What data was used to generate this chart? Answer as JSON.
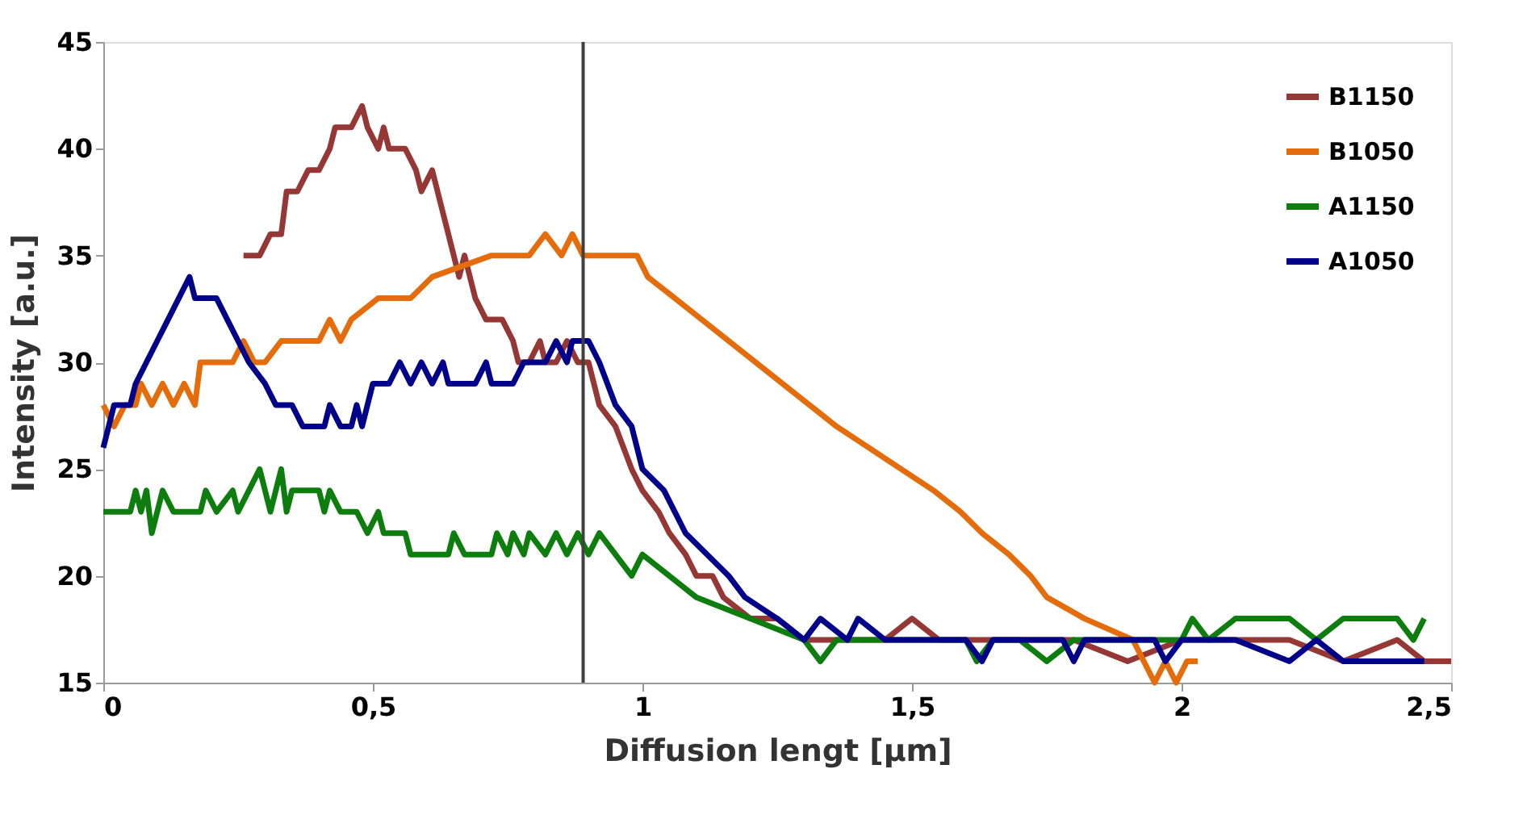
{
  "chart_data": {
    "type": "line",
    "xlabel": "Diffusion lengt [µm]",
    "ylabel": "Intensity [a.u.]",
    "xlim": [
      0,
      2.5
    ],
    "xticks": [
      0,
      {
        "value": 0.5,
        "label": "0,5"
      },
      1,
      {
        "value": 1.5,
        "label": "1,5"
      },
      2,
      {
        "value": 2.5,
        "label": "2,5"
      }
    ],
    "ylim": [
      15,
      45
    ],
    "yticks": [
      15,
      20,
      25,
      30,
      35,
      40,
      45
    ],
    "grid": false,
    "legend": "top right",
    "marker": "none",
    "line_style": "solid",
    "ref_lines": [
      {
        "axis": "x",
        "value": 0.89,
        "color": "#404040"
      }
    ],
    "series": [
      {
        "name": "B1150",
        "color": "#953735",
        "x": [
          0.26,
          0.29,
          0.31,
          0.33,
          0.34,
          0.36,
          0.38,
          0.4,
          0.42,
          0.43,
          0.46,
          0.48,
          0.49,
          0.51,
          0.52,
          0.53,
          0.56,
          0.58,
          0.59,
          0.61,
          0.63,
          0.64,
          0.66,
          0.67,
          0.69,
          0.71,
          0.74,
          0.76,
          0.77,
          0.79,
          0.81,
          0.82,
          0.84,
          0.86,
          0.88,
          0.9,
          0.92,
          0.95,
          0.98,
          1.0,
          1.03,
          1.05,
          1.08,
          1.1,
          1.13,
          1.15,
          1.2,
          1.25,
          1.3,
          1.35,
          1.4,
          1.45,
          1.5,
          1.55,
          1.6,
          1.7,
          1.8,
          1.9,
          2.0,
          2.1,
          2.2,
          2.3,
          2.4,
          2.45,
          2.5
        ],
        "values": [
          35,
          35,
          36,
          36,
          38,
          38,
          39,
          39,
          40,
          41,
          41,
          42,
          41,
          40,
          41,
          40,
          40,
          39,
          38,
          39,
          37,
          36,
          34,
          35,
          33,
          32,
          32,
          31,
          30,
          30,
          31,
          30,
          30,
          31,
          30,
          30,
          28,
          27,
          25,
          24,
          23,
          22,
          21,
          20,
          20,
          19,
          18,
          18,
          17,
          17,
          17,
          17,
          18,
          17,
          17,
          17,
          17,
          16,
          17,
          17,
          17,
          16,
          17,
          16,
          16
        ]
      },
      {
        "name": "B1050",
        "color": "#e46c0a",
        "x": [
          0,
          0.02,
          0.04,
          0.06,
          0.07,
          0.09,
          0.11,
          0.13,
          0.15,
          0.17,
          0.18,
          0.24,
          0.26,
          0.28,
          0.3,
          0.33,
          0.37,
          0.4,
          0.42,
          0.44,
          0.46,
          0.51,
          0.57,
          0.61,
          0.72,
          0.79,
          0.82,
          0.85,
          0.87,
          0.89,
          0.99,
          1.01,
          1.06,
          1.11,
          1.16,
          1.21,
          1.26,
          1.31,
          1.36,
          1.42,
          1.48,
          1.54,
          1.59,
          1.63,
          1.68,
          1.72,
          1.75,
          1.82,
          1.91,
          1.95,
          1.97,
          1.99,
          2.01,
          2.03
        ],
        "values": [
          28,
          27,
          28,
          28,
          29,
          28,
          29,
          28,
          29,
          28,
          30,
          30,
          31,
          30,
          30,
          31,
          31,
          31,
          32,
          31,
          32,
          33,
          33,
          34,
          35,
          35,
          36,
          35,
          36,
          35,
          35,
          34,
          33,
          32,
          31,
          30,
          29,
          28,
          27,
          26,
          25,
          24,
          23,
          22,
          21,
          20,
          19,
          18,
          17,
          15,
          16,
          15,
          16,
          16
        ]
      },
      {
        "name": "A1150",
        "color": "#0d7d0d",
        "x": [
          0,
          0.05,
          0.06,
          0.07,
          0.08,
          0.09,
          0.11,
          0.13,
          0.18,
          0.19,
          0.21,
          0.24,
          0.25,
          0.27,
          0.29,
          0.31,
          0.33,
          0.34,
          0.35,
          0.4,
          0.41,
          0.42,
          0.44,
          0.47,
          0.49,
          0.51,
          0.52,
          0.56,
          0.57,
          0.6,
          0.64,
          0.65,
          0.67,
          0.72,
          0.73,
          0.75,
          0.76,
          0.78,
          0.79,
          0.82,
          0.84,
          0.86,
          0.88,
          0.9,
          0.92,
          0.95,
          0.98,
          1.0,
          1.05,
          1.1,
          1.2,
          1.3,
          1.33,
          1.36,
          1.45,
          1.6,
          1.62,
          1.65,
          1.7,
          1.75,
          1.8,
          2.0,
          2.02,
          2.05,
          2.1,
          2.2,
          2.25,
          2.3,
          2.4,
          2.43,
          2.45
        ],
        "values": [
          23,
          23,
          24,
          23,
          24,
          22,
          24,
          23,
          23,
          24,
          23,
          24,
          23,
          24,
          25,
          23,
          25,
          23,
          24,
          24,
          23,
          24,
          23,
          23,
          22,
          23,
          22,
          22,
          21,
          21,
          21,
          22,
          21,
          21,
          22,
          21,
          22,
          21,
          22,
          21,
          22,
          21,
          22,
          21,
          22,
          21,
          20,
          21,
          20,
          19,
          18,
          17,
          16,
          17,
          17,
          17,
          16,
          17,
          17,
          16,
          17,
          17,
          18,
          17,
          18,
          18,
          17,
          18,
          18,
          17,
          18
        ]
      },
      {
        "name": "A1050",
        "color": "#00008b",
        "x": [
          0,
          0.01,
          0.02,
          0.05,
          0.06,
          0.08,
          0.1,
          0.12,
          0.14,
          0.16,
          0.17,
          0.21,
          0.23,
          0.25,
          0.27,
          0.3,
          0.32,
          0.35,
          0.37,
          0.41,
          0.42,
          0.44,
          0.46,
          0.47,
          0.48,
          0.5,
          0.53,
          0.55,
          0.57,
          0.59,
          0.61,
          0.63,
          0.64,
          0.69,
          0.71,
          0.72,
          0.76,
          0.78,
          0.82,
          0.84,
          0.86,
          0.87,
          0.9,
          0.92,
          0.95,
          0.98,
          1.0,
          1.04,
          1.08,
          1.12,
          1.16,
          1.19,
          1.25,
          1.3,
          1.33,
          1.38,
          1.4,
          1.45,
          1.6,
          1.63,
          1.65,
          1.78,
          1.8,
          1.82,
          1.95,
          1.97,
          2.0,
          2.1,
          2.2,
          2.25,
          2.3,
          2.4,
          2.45
        ],
        "values": [
          26,
          27,
          28,
          28,
          29,
          30,
          31,
          32,
          33,
          34,
          33,
          33,
          32,
          31,
          30,
          29,
          28,
          28,
          27,
          27,
          28,
          27,
          27,
          28,
          27,
          29,
          29,
          30,
          29,
          30,
          29,
          30,
          29,
          29,
          30,
          29,
          29,
          30,
          30,
          31,
          30,
          31,
          31,
          30,
          28,
          27,
          25,
          24,
          22,
          21,
          20,
          19,
          18,
          17,
          18,
          17,
          18,
          17,
          17,
          16,
          17,
          17,
          16,
          17,
          17,
          16,
          17,
          17,
          16,
          17,
          16,
          16,
          16
        ]
      }
    ]
  }
}
